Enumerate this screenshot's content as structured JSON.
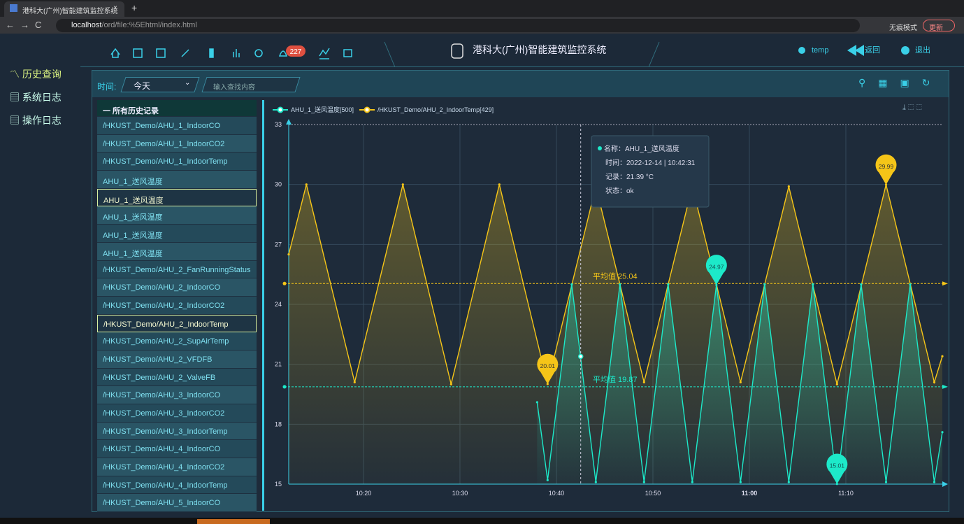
{
  "browser": {
    "tab_title": "港科大(广州)智能建筑监控系统",
    "url_host": "localhost",
    "url_path": "/ord/file:%5Ehtml/index.html",
    "incognito": "无痕模式",
    "update": "更新"
  },
  "header": {
    "title": "港科大(广州)智能建筑监控系统",
    "badge": "227",
    "user": "temp",
    "back": "返回",
    "logout": "退出"
  },
  "sidebar": [
    "历史查询",
    "系统日志",
    "操作日志"
  ],
  "toolbar": {
    "time_label": "时间:",
    "time_value": "今天",
    "search_placeholder": "输入查找内容"
  },
  "list": {
    "header": "一 所有历史记录",
    "selected": [
      4,
      11
    ],
    "items": [
      "/HKUST_Demo/AHU_1_IndoorCO",
      "/HKUST_Demo/AHU_1_IndoorCO2",
      "/HKUST_Demo/AHU_1_IndoorTemp",
      "AHU_1_送风温度",
      "AHU_1_送风温度",
      "AHU_1_送风温度",
      "AHU_1_送风温度",
      "AHU_1_送风温度",
      "/HKUST_Demo/AHU_2_FanRunningStatus",
      "/HKUST_Demo/AHU_2_IndoorCO",
      "/HKUST_Demo/AHU_2_IndoorCO2",
      "/HKUST_Demo/AHU_2_IndoorTemp",
      "/HKUST_Demo/AHU_2_SupAirTemp",
      "/HKUST_Demo/AHU_2_VFDFB",
      "/HKUST_Demo/AHU_2_ValveFB",
      "/HKUST_Demo/AHU_3_IndoorCO",
      "/HKUST_Demo/AHU_3_IndoorCO2",
      "/HKUST_Demo/AHU_3_IndoorTemp",
      "/HKUST_Demo/AHU_4_IndoorCO",
      "/HKUST_Demo/AHU_4_IndoorCO2",
      "/HKUST_Demo/AHU_4_IndoorTemp",
      "/HKUST_Demo/AHU_5_IndoorCO"
    ]
  },
  "chart": {
    "type": "line",
    "xlim": [
      "10:12:15",
      "11:20:00"
    ],
    "xticks": [
      "10:20",
      "10:30",
      "10:40",
      "10:50",
      "11:00",
      "11:10"
    ],
    "ylim": [
      15,
      33
    ],
    "yticks": [
      15,
      18,
      21,
      24,
      27,
      30,
      33
    ],
    "grid": true,
    "series": [
      {
        "name": "AHU_1_送风温度[500]",
        "color": "#1de9c9",
        "x": [
          "10:38:00",
          "10:39:05",
          "10:41:35",
          "10:44:05",
          "10:46:35",
          "10:49:05",
          "10:51:35",
          "10:54:05",
          "10:56:35",
          "10:59:05",
          "11:01:35",
          "11:04:05",
          "11:06:35",
          "11:09:05",
          "11:11:35",
          "11:14:10",
          "11:16:40",
          "11:19:10",
          "11:20:00"
        ],
        "values": [
          19.1,
          15.2,
          25,
          15.1,
          25,
          15.1,
          25,
          15.1,
          24.97,
          15.1,
          25,
          15.1,
          25,
          15.01,
          25,
          15.1,
          25,
          15.1,
          17.6
        ],
        "average": {
          "value": 19.87,
          "label": "平均值 19.87"
        },
        "markers": [
          {
            "x": "10:56:35",
            "value": 24.97
          },
          {
            "x": "11:09:05",
            "value": 15.01
          }
        ]
      },
      {
        "name": "/HKUST_Demo/AHU_2_IndoorTemp[429]",
        "color": "#f5c518",
        "x": [
          "10:12:15",
          "10:14:05",
          "10:19:05",
          "10:24:05",
          "10:29:05",
          "10:34:05",
          "10:39:05",
          "10:44:05",
          "10:49:05",
          "10:54:05",
          "10:59:05",
          "11:04:05",
          "11:09:05",
          "11:14:10",
          "11:19:10",
          "11:20:00"
        ],
        "values": [
          26.5,
          30,
          20.1,
          30,
          20,
          30,
          20.01,
          29.9,
          20.1,
          29.9,
          20.1,
          29.9,
          20,
          29.99,
          20.1,
          21.4
        ],
        "average": {
          "value": 25.04,
          "label": "平均值 25.04"
        },
        "markers": [
          {
            "x": "10:39:05",
            "value": 20.01
          },
          {
            "x": "11:14:10",
            "value": 29.99
          }
        ]
      }
    ],
    "hover": {
      "x": "10:42:31",
      "value": 21.39
    },
    "tooltip": {
      "name": "名称：AHU_1_送风温度",
      "time": "时间：2022-12-14 | 10:42:31",
      "record": "记录：21.39 °C",
      "status": "状态：ok"
    }
  }
}
